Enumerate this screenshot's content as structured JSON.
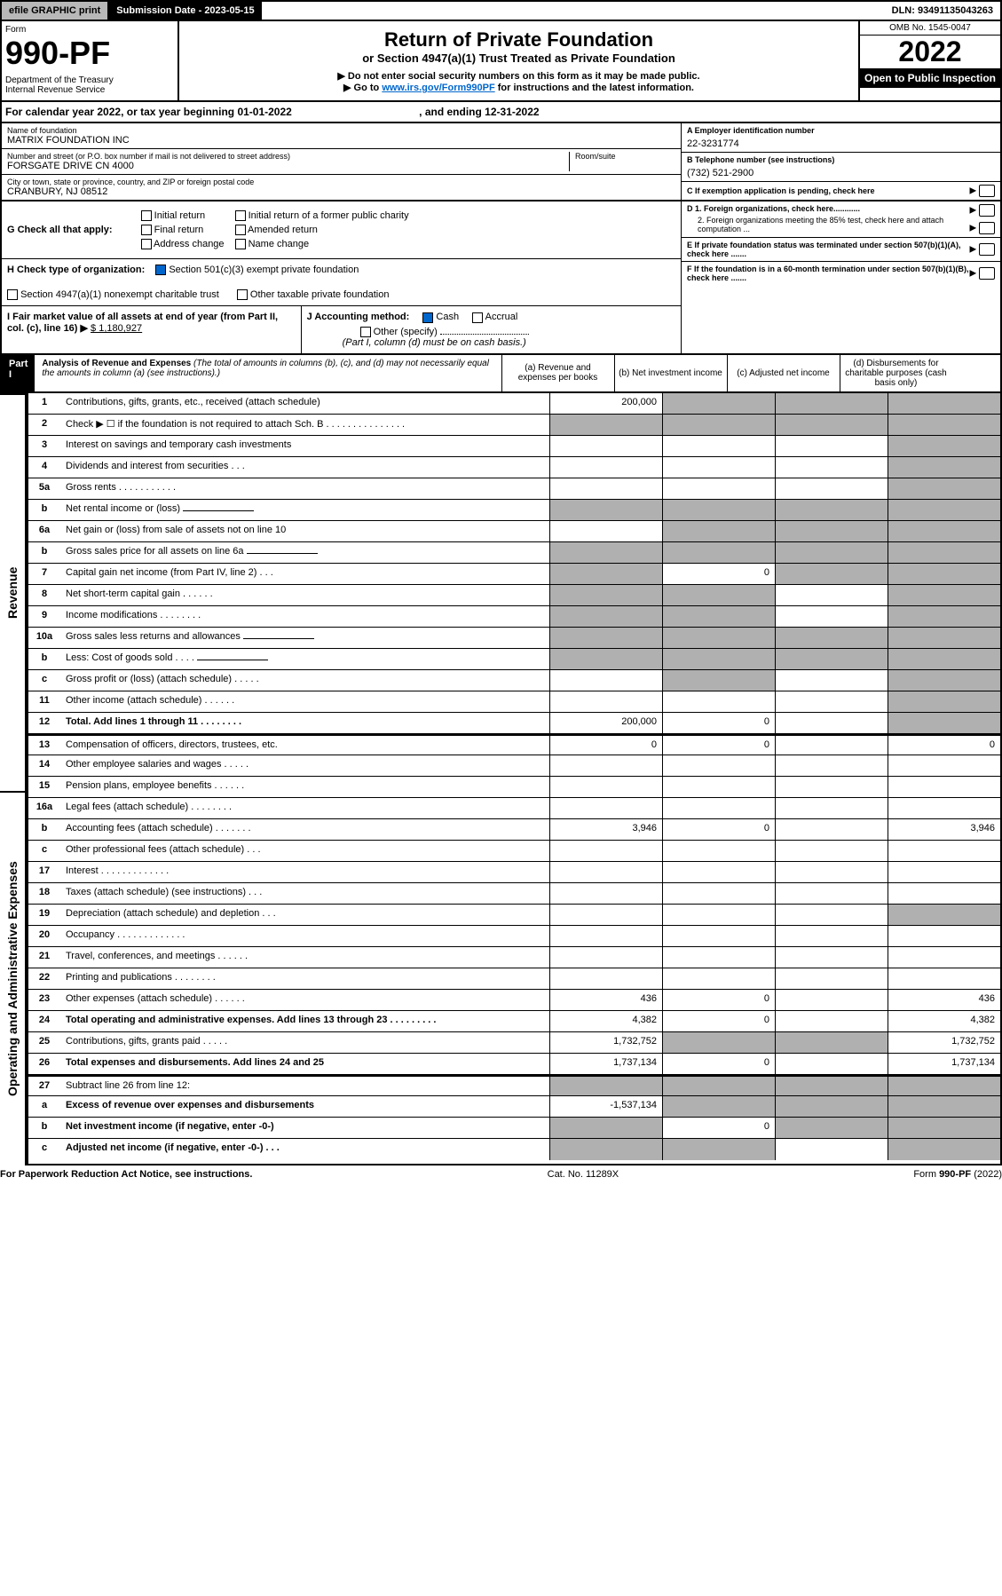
{
  "topbar": {
    "efile": "efile GRAPHIC print",
    "sub_label": "Submission Date - 2023-05-15",
    "dln": "DLN: 93491135043263"
  },
  "header": {
    "form_word": "Form",
    "form_number": "990-PF",
    "dept": "Department of the Treasury",
    "irs": "Internal Revenue Service",
    "title": "Return of Private Foundation",
    "subtitle": "or Section 4947(a)(1) Trust Treated as Private Foundation",
    "instr1": "▶ Do not enter social security numbers on this form as it may be made public.",
    "instr2_pre": "▶ Go to ",
    "instr2_link": "www.irs.gov/Form990PF",
    "instr2_post": " for instructions and the latest information.",
    "omb": "OMB No. 1545-0047",
    "year": "2022",
    "inspect": "Open to Public Inspection"
  },
  "calyear": {
    "text_pre": "For calendar year 2022, or tax year beginning 01-01-2022",
    "text_mid": ", and ending 12-31-2022"
  },
  "info": {
    "name_label": "Name of foundation",
    "name": "MATRIX FOUNDATION INC",
    "addr_label": "Number and street (or P.O. box number if mail is not delivered to street address)",
    "addr": "FORSGATE DRIVE CN 4000",
    "room_label": "Room/suite",
    "city_label": "City or town, state or province, country, and ZIP or foreign postal code",
    "city": "CRANBURY, NJ  08512",
    "ein_label": "A Employer identification number",
    "ein": "22-3231774",
    "phone_label": "B Telephone number (see instructions)",
    "phone": "(732) 521-2900",
    "c_label": "C If exemption application is pending, check here",
    "d1_label": "D 1. Foreign organizations, check here............",
    "d2_label": "2. Foreign organizations meeting the 85% test, check here and attach computation ...",
    "e_label": "E If private foundation status was terminated under section 507(b)(1)(A), check here .......",
    "f_label": "F If the foundation is in a 60-month termination under section 507(b)(1)(B), check here ......."
  },
  "g": {
    "label": "G Check all that apply:",
    "initial": "Initial return",
    "final": "Final return",
    "address": "Address change",
    "initial_former": "Initial return of a former public charity",
    "amended": "Amended return",
    "name_change": "Name change"
  },
  "h": {
    "label": "H Check type of organization:",
    "opt1": "Section 501(c)(3) exempt private foundation",
    "opt2": "Section 4947(a)(1) nonexempt charitable trust",
    "opt3": "Other taxable private foundation"
  },
  "i": {
    "label": "I Fair market value of all assets at end of year (from Part II, col. (c), line 16) ▶",
    "value": "$  1,180,927"
  },
  "j": {
    "label": "J Accounting method:",
    "cash": "Cash",
    "accrual": "Accrual",
    "other": "Other (specify)",
    "note": "(Part I, column (d) must be on cash basis.)"
  },
  "part1": {
    "label": "Part I",
    "title": "Analysis of Revenue and Expenses",
    "title_note": " (The total of amounts in columns (b), (c), and (d) may not necessarily equal the amounts in column (a) (see instructions).)",
    "col_a": "(a) Revenue and expenses per books",
    "col_b": "(b) Net investment income",
    "col_c": "(c) Adjusted net income",
    "col_d": "(d) Disbursements for charitable purposes (cash basis only)"
  },
  "side_labels": {
    "revenue": "Revenue",
    "expenses": "Operating and Administrative Expenses"
  },
  "lines": [
    {
      "n": "1",
      "d": "Contributions, gifts, grants, etc., received (attach schedule)",
      "a": "200,000",
      "b": "shaded",
      "c": "shaded",
      "dd": "shaded"
    },
    {
      "n": "2",
      "d": "Check ▶ ☐ if the foundation is not required to attach Sch. B     .   .   .   .   .   .   .   .   .   .   .   .   .   .   .",
      "a": "shaded",
      "b": "shaded",
      "c": "shaded",
      "dd": "shaded"
    },
    {
      "n": "3",
      "d": "Interest on savings and temporary cash investments",
      "a": "",
      "b": "",
      "c": "",
      "dd": "shaded"
    },
    {
      "n": "4",
      "d": "Dividends and interest from securities    .   .   .",
      "a": "",
      "b": "",
      "c": "",
      "dd": "shaded"
    },
    {
      "n": "5a",
      "d": "Gross rents    .   .   .   .   .   .   .   .   .   .   .",
      "a": "",
      "b": "",
      "c": "",
      "dd": "shaded"
    },
    {
      "n": "b",
      "d": "Net rental income or (loss)",
      "a": "shaded",
      "b": "shaded",
      "c": "shaded",
      "dd": "shaded",
      "inner": true
    },
    {
      "n": "6a",
      "d": "Net gain or (loss) from sale of assets not on line 10",
      "a": "",
      "b": "shaded",
      "c": "shaded",
      "dd": "shaded"
    },
    {
      "n": "b",
      "d": "Gross sales price for all assets on line 6a",
      "a": "shaded",
      "b": "shaded",
      "c": "shaded",
      "dd": "shaded",
      "inner": true
    },
    {
      "n": "7",
      "d": "Capital gain net income (from Part IV, line 2)   .   .   .",
      "a": "shaded",
      "b": "0",
      "c": "shaded",
      "dd": "shaded"
    },
    {
      "n": "8",
      "d": "Net short-term capital gain   .   .   .   .   .   .",
      "a": "shaded",
      "b": "shaded",
      "c": "",
      "dd": "shaded"
    },
    {
      "n": "9",
      "d": "Income modifications   .   .   .   .   .   .   .   .",
      "a": "shaded",
      "b": "shaded",
      "c": "",
      "dd": "shaded"
    },
    {
      "n": "10a",
      "d": "Gross sales less returns and allowances",
      "a": "shaded",
      "b": "shaded",
      "c": "shaded",
      "dd": "shaded",
      "inner": true
    },
    {
      "n": "b",
      "d": "Less: Cost of goods sold    .   .   .   .",
      "a": "shaded",
      "b": "shaded",
      "c": "shaded",
      "dd": "shaded",
      "inner": true
    },
    {
      "n": "c",
      "d": "Gross profit or (loss) (attach schedule)    .   .   .   .   .",
      "a": "",
      "b": "shaded",
      "c": "",
      "dd": "shaded"
    },
    {
      "n": "11",
      "d": "Other income (attach schedule)    .   .   .   .   .   .",
      "a": "",
      "b": "",
      "c": "",
      "dd": "shaded"
    },
    {
      "n": "12",
      "d": "Total. Add lines 1 through 11   .   .   .   .   .   .   .   .",
      "a": "200,000",
      "b": "0",
      "c": "",
      "dd": "shaded",
      "bold": true
    },
    {
      "n": "13",
      "d": "Compensation of officers, directors, trustees, etc.",
      "a": "0",
      "b": "0",
      "c": "",
      "dd": "0",
      "group": true
    },
    {
      "n": "14",
      "d": "Other employee salaries and wages    .   .   .   .   .",
      "a": "",
      "b": "",
      "c": "",
      "dd": ""
    },
    {
      "n": "15",
      "d": "Pension plans, employee benefits   .   .   .   .   .   .",
      "a": "",
      "b": "",
      "c": "",
      "dd": ""
    },
    {
      "n": "16a",
      "d": "Legal fees (attach schedule)  .   .   .   .   .   .   .   .",
      "a": "",
      "b": "",
      "c": "",
      "dd": ""
    },
    {
      "n": "b",
      "d": "Accounting fees (attach schedule)  .   .   .   .   .   .   .",
      "a": "3,946",
      "b": "0",
      "c": "",
      "dd": "3,946"
    },
    {
      "n": "c",
      "d": "Other professional fees (attach schedule)    .   .   .",
      "a": "",
      "b": "",
      "c": "",
      "dd": ""
    },
    {
      "n": "17",
      "d": "Interest  .   .   .   .   .   .   .   .   .   .   .   .   .",
      "a": "",
      "b": "",
      "c": "",
      "dd": ""
    },
    {
      "n": "18",
      "d": "Taxes (attach schedule) (see instructions)    .   .   .",
      "a": "",
      "b": "",
      "c": "",
      "dd": ""
    },
    {
      "n": "19",
      "d": "Depreciation (attach schedule) and depletion    .   .   .",
      "a": "",
      "b": "",
      "c": "",
      "dd": "shaded"
    },
    {
      "n": "20",
      "d": "Occupancy  .   .   .   .   .   .   .   .   .   .   .   .   .",
      "a": "",
      "b": "",
      "c": "",
      "dd": ""
    },
    {
      "n": "21",
      "d": "Travel, conferences, and meetings  .   .   .   .   .   .",
      "a": "",
      "b": "",
      "c": "",
      "dd": ""
    },
    {
      "n": "22",
      "d": "Printing and publications  .   .   .   .   .   .   .   .",
      "a": "",
      "b": "",
      "c": "",
      "dd": ""
    },
    {
      "n": "23",
      "d": "Other expenses (attach schedule)  .   .   .   .   .   .",
      "a": "436",
      "b": "0",
      "c": "",
      "dd": "436"
    },
    {
      "n": "24",
      "d": "Total operating and administrative expenses. Add lines 13 through 23   .   .   .   .   .   .   .   .   .",
      "a": "4,382",
      "b": "0",
      "c": "",
      "dd": "4,382",
      "bold": true
    },
    {
      "n": "25",
      "d": "Contributions, gifts, grants paid    .   .   .   .   .",
      "a": "1,732,752",
      "b": "shaded",
      "c": "shaded",
      "dd": "1,732,752"
    },
    {
      "n": "26",
      "d": "Total expenses and disbursements. Add lines 24 and 25",
      "a": "1,737,134",
      "b": "0",
      "c": "",
      "dd": "1,737,134",
      "bold": true
    },
    {
      "n": "27",
      "d": "Subtract line 26 from line 12:",
      "a": "shaded",
      "b": "shaded",
      "c": "shaded",
      "dd": "shaded",
      "group": true
    },
    {
      "n": "a",
      "d": "Excess of revenue over expenses and disbursements",
      "a": "-1,537,134",
      "b": "shaded",
      "c": "shaded",
      "dd": "shaded",
      "bold": true
    },
    {
      "n": "b",
      "d": "Net investment income (if negative, enter -0-)",
      "a": "shaded",
      "b": "0",
      "c": "shaded",
      "dd": "shaded",
      "bold": true
    },
    {
      "n": "c",
      "d": "Adjusted net income (if negative, enter -0-)   .   .   .",
      "a": "shaded",
      "b": "shaded",
      "c": "",
      "dd": "shaded",
      "bold": true
    }
  ],
  "footer": {
    "left": "For Paperwork Reduction Act Notice, see instructions.",
    "mid": "Cat. No. 11289X",
    "right": "Form 990-PF (2022)"
  },
  "colors": {
    "shaded": "#b0b0b0",
    "black": "#000000",
    "link": "#0066cc"
  }
}
